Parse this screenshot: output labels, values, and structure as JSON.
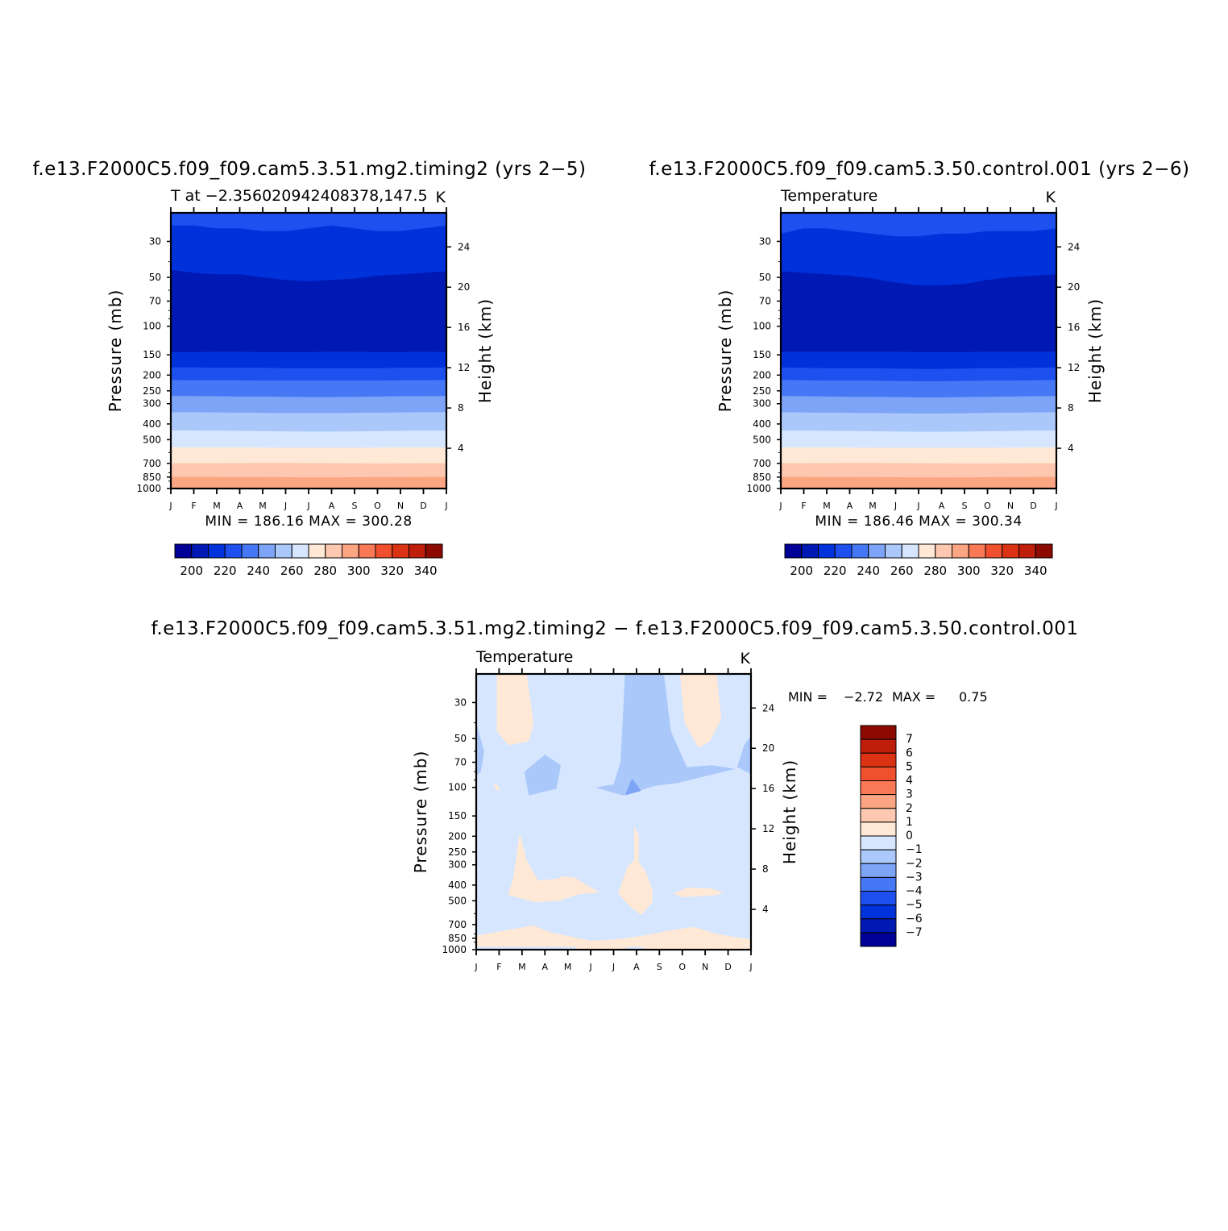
{
  "chart_data": [
    {
      "type": "heatmap",
      "title": "f.e13.F2000C5.f09_f09.cam5.3.51.mg2.timing2 (yrs 2−5)",
      "subtitle": "T at −2.356020942408378,147.5",
      "units": "K",
      "xlabel": "",
      "ylabel": "Pressure (mb)",
      "ylabel_right": "Height (km)",
      "x_ticks": [
        "J",
        "F",
        "M",
        "A",
        "M",
        "J",
        "J",
        "A",
        "S",
        "O",
        "N",
        "D",
        "J"
      ],
      "y_ticks_pressure": [
        "30",
        "50",
        "70",
        "100",
        "150",
        "200",
        "250",
        "300",
        "400",
        "500",
        "700",
        "850",
        "1000"
      ],
      "y_ticks_height": [
        "24",
        "20",
        "16",
        "12",
        "8",
        "4"
      ],
      "min_max_text": "MIN = 186.16 MAX = 300.28",
      "colorbar_labels": [
        "200",
        "220",
        "240",
        "260",
        "280",
        "300",
        "320",
        "340"
      ],
      "levels": [
        190,
        200,
        210,
        220,
        230,
        240,
        250,
        260,
        270,
        280,
        290,
        300,
        310,
        320,
        330,
        340
      ],
      "boundaries_mb": [
        [
          24,
          24,
          25,
          25,
          26,
          26,
          25,
          24,
          25,
          26,
          26,
          25,
          24
        ],
        [
          45,
          47,
          48,
          48,
          50,
          52,
          53,
          52,
          51,
          49,
          48,
          47,
          46
        ],
        [
          145,
          145,
          144,
          144,
          145,
          145,
          145,
          144,
          144,
          145,
          145,
          144,
          145
        ],
        [
          180,
          180,
          181,
          181,
          181,
          182,
          182,
          182,
          182,
          182,
          181,
          181,
          180
        ],
        [
          215,
          216,
          216,
          216,
          217,
          217,
          217,
          217,
          217,
          217,
          216,
          216,
          215
        ],
        [
          270,
          270,
          271,
          272,
          272,
          273,
          274,
          274,
          273,
          272,
          271,
          271,
          270
        ],
        [
          340,
          340,
          341,
          342,
          343,
          344,
          344,
          344,
          343,
          342,
          341,
          340,
          340
        ],
        [
          440,
          440,
          441,
          442,
          444,
          446,
          447,
          447,
          446,
          444,
          442,
          441,
          440
        ],
        [
          560,
          560,
          560,
          560,
          561,
          562,
          562,
          562,
          562,
          561,
          560,
          560,
          560
        ],
        [
          700,
          700,
          700,
          699,
          698,
          698,
          699,
          700,
          701,
          702,
          701,
          700,
          700
        ],
        [
          850,
          850,
          851,
          852,
          853,
          855,
          856,
          856,
          855,
          854,
          852,
          851,
          850
        ]
      ],
      "band_values": [
        210,
        200,
        190,
        200,
        210,
        220,
        230,
        240,
        250,
        260,
        270,
        280
      ]
    },
    {
      "type": "heatmap",
      "title": "f.e13.F2000C5.f09_f09.cam5.3.50.control.001 (yrs 2−6)",
      "subtitle": "Temperature",
      "units": "K",
      "xlabel": "",
      "ylabel": "Pressure (mb)",
      "ylabel_right": "Height (km)",
      "x_ticks": [
        "J",
        "F",
        "M",
        "A",
        "M",
        "J",
        "J",
        "A",
        "S",
        "O",
        "N",
        "D",
        "J"
      ],
      "y_ticks_pressure": [
        "30",
        "50",
        "70",
        "100",
        "150",
        "200",
        "250",
        "300",
        "400",
        "500",
        "700",
        "850",
        "1000"
      ],
      "y_ticks_height": [
        "24",
        "20",
        "16",
        "12",
        "8",
        "4"
      ],
      "min_max_text": "MIN = 186.46 MAX = 300.34",
      "colorbar_labels": [
        "200",
        "220",
        "240",
        "260",
        "280",
        "300",
        "320",
        "340"
      ],
      "levels": [
        190,
        200,
        210,
        220,
        230,
        240,
        250,
        260,
        270,
        280,
        290,
        300,
        310,
        320,
        330,
        340
      ],
      "boundaries_mb": [
        [
          27,
          25,
          25,
          26,
          27,
          28,
          28,
          27,
          27,
          26,
          26,
          26,
          25
        ],
        [
          46,
          47,
          48,
          49,
          51,
          54,
          56,
          56,
          55,
          52,
          50,
          49,
          48
        ],
        [
          144,
          144,
          144,
          144,
          144,
          144,
          145,
          145,
          145,
          144,
          144,
          144,
          144
        ],
        [
          180,
          181,
          182,
          182,
          182,
          183,
          184,
          184,
          183,
          182,
          182,
          181,
          180
        ],
        [
          215,
          216,
          217,
          217,
          217,
          218,
          219,
          219,
          218,
          217,
          217,
          216,
          215
        ],
        [
          270,
          271,
          272,
          273,
          273,
          274,
          275,
          275,
          274,
          273,
          272,
          271,
          270
        ],
        [
          340,
          341,
          342,
          343,
          344,
          345,
          346,
          346,
          345,
          343,
          342,
          341,
          340
        ],
        [
          440,
          441,
          442,
          443,
          445,
          447,
          448,
          448,
          447,
          445,
          443,
          441,
          440
        ],
        [
          560,
          560,
          560,
          561,
          562,
          563,
          563,
          563,
          563,
          562,
          561,
          560,
          560
        ],
        [
          700,
          700,
          699,
          698,
          698,
          699,
          700,
          701,
          702,
          702,
          701,
          700,
          700
        ],
        [
          850,
          851,
          852,
          853,
          854,
          855,
          856,
          857,
          856,
          855,
          853,
          851,
          850
        ]
      ],
      "band_values": [
        210,
        200,
        190,
        200,
        210,
        220,
        230,
        240,
        250,
        260,
        270,
        280
      ]
    },
    {
      "type": "heatmap",
      "title": "f.e13.F2000C5.f09_f09.cam5.3.51.mg2.timing2 − f.e13.F2000C5.f09_f09.cam5.3.50.control.001",
      "subtitle": "Temperature",
      "units": "K",
      "xlabel": "",
      "ylabel": "Pressure (mb)",
      "ylabel_right": "Height (km)",
      "x_ticks": [
        "J",
        "F",
        "M",
        "A",
        "M",
        "J",
        "J",
        "A",
        "S",
        "O",
        "N",
        "D",
        "J"
      ],
      "y_ticks_pressure": [
        "30",
        "50",
        "70",
        "100",
        "150",
        "200",
        "250",
        "300",
        "400",
        "500",
        "700",
        "850",
        "1000"
      ],
      "y_ticks_height": [
        "24",
        "20",
        "16",
        "12",
        "8",
        "4"
      ],
      "min_text": "MIN =",
      "min_value": "−2.72",
      "max_text": "MAX =",
      "max_value": "0.75",
      "colorbar_labels": [
        "7",
        "6",
        "5",
        "4",
        "3",
        "2",
        "1",
        "0",
        "−1",
        "−2",
        "−3",
        "−4",
        "−5",
        "−6",
        "−7"
      ],
      "levels": [
        -7,
        -6,
        -5,
        -4,
        -3,
        -2,
        -1,
        0,
        1,
        2,
        3,
        4,
        5,
        6,
        7
      ],
      "background_value_range": [
        -1,
        0
      ],
      "regions": [
        {
          "name": "warm-feb-top",
          "value_range": [
            0,
            1
          ],
          "points": [
            [
              0.9,
              20
            ],
            [
              2.2,
              20
            ],
            [
              2.5,
              40
            ],
            [
              2.3,
              52
            ],
            [
              1.4,
              55
            ],
            [
              0.9,
              45
            ]
          ]
        },
        {
          "name": "cool-jan-edge",
          "value_range": [
            -2,
            -1
          ],
          "points": [
            [
              0,
              40
            ],
            [
              0.1,
              45
            ],
            [
              0.35,
              60
            ],
            [
              0.2,
              80
            ],
            [
              0,
              85
            ]
          ]
        },
        {
          "name": "cool-march",
          "value_range": [
            -2,
            -1
          ],
          "points": [
            [
              2.1,
              80
            ],
            [
              3,
              63
            ],
            [
              3.7,
              73
            ],
            [
              3.5,
              102
            ],
            [
              2.3,
              112
            ]
          ]
        },
        {
          "name": "warm-feb-dot",
          "value_range": [
            0,
            1
          ],
          "points": [
            [
              0.75,
              96
            ],
            [
              0.95,
              97
            ],
            [
              1.05,
              105
            ],
            [
              0.85,
              103
            ]
          ]
        },
        {
          "name": "cool-aug",
          "value_range": [
            -2,
            -1
          ],
          "points": [
            [
              6.5,
              20
            ],
            [
              8.2,
              20
            ],
            [
              8.5,
              45
            ],
            [
              9.2,
              75
            ],
            [
              10.3,
              73
            ],
            [
              11.3,
              77
            ],
            [
              8.8,
              94
            ],
            [
              7.8,
              98
            ],
            [
              6.4,
              112
            ],
            [
              5.2,
              100
            ],
            [
              6,
              96
            ],
            [
              6.3,
              70
            ]
          ]
        },
        {
          "name": "cooler-aug-spot",
          "value_range": [
            -3,
            -2
          ],
          "points": [
            [
              6.5,
              112
            ],
            [
              6.8,
              88
            ],
            [
              7.2,
              105
            ]
          ]
        },
        {
          "name": "warm-nov-top",
          "value_range": [
            0,
            1
          ],
          "points": [
            [
              8.9,
              20
            ],
            [
              10.5,
              20
            ],
            [
              10.7,
              38
            ],
            [
              10.2,
              52
            ],
            [
              9.7,
              57
            ],
            [
              9.1,
              40
            ]
          ]
        },
        {
          "name": "cool-dec-edge",
          "value_range": [
            -2,
            -1
          ],
          "points": [
            [
              11.4,
              75
            ],
            [
              11.7,
              55
            ],
            [
              12,
              48
            ],
            [
              12,
              83
            ]
          ]
        },
        {
          "name": "warm-mar-mid",
          "value_range": [
            0,
            1
          ],
          "points": [
            [
              1.9,
              190
            ],
            [
              2.2,
              280
            ],
            [
              2.7,
              375
            ],
            [
              3.6,
              365
            ],
            [
              3.7,
              353
            ],
            [
              4.3,
              360
            ],
            [
              5.4,
              445
            ],
            [
              4.5,
              455
            ],
            [
              3.6,
              500
            ],
            [
              2.6,
              510
            ],
            [
              1.4,
              460
            ],
            [
              1.6,
              370
            ]
          ]
        },
        {
          "name": "warm-aug-mid",
          "value_range": [
            0,
            1
          ],
          "points": [
            [
              6.9,
              175
            ],
            [
              7.1,
              195
            ],
            [
              7.1,
              290
            ],
            [
              7.4,
              330
            ],
            [
              7.7,
              430
            ],
            [
              7.7,
              510
            ],
            [
              7.2,
              610
            ],
            [
              6.7,
              540
            ],
            [
              6.2,
              450
            ],
            [
              6.6,
              310
            ],
            [
              6.9,
              280
            ]
          ]
        },
        {
          "name": "warm-oct-mid",
          "value_range": [
            0,
            1
          ],
          "points": [
            [
              8.6,
              450
            ],
            [
              9.2,
              415
            ],
            [
              10.3,
              420
            ],
            [
              10.8,
              450
            ],
            [
              10.3,
              465
            ],
            [
              9,
              475
            ]
          ]
        },
        {
          "name": "warm-bottom",
          "value_range": [
            0,
            1
          ],
          "points": [
            [
              0,
              820
            ],
            [
              1.3,
              760
            ],
            [
              2.5,
              710
            ],
            [
              3.2,
              780
            ],
            [
              5,
              880
            ],
            [
              6.3,
              860
            ],
            [
              7.5,
              810
            ],
            [
              8.5,
              760
            ],
            [
              9.5,
              725
            ],
            [
              10.5,
              800
            ],
            [
              11.6,
              850
            ],
            [
              12,
              860
            ],
            [
              12,
              1000
            ],
            [
              7.7,
              1000
            ],
            [
              6.9,
              955
            ],
            [
              6.1,
              1000
            ],
            [
              4.4,
              1000
            ],
            [
              4.3,
              960
            ],
            [
              0,
              960
            ]
          ]
        }
      ]
    }
  ],
  "palette": {
    "main": [
      "#000096",
      "#0019b4",
      "#0032dc",
      "#1e50f0",
      "#4678f5",
      "#7ea4f8",
      "#aac8fa",
      "#d6e6ff",
      "#ffe8d6",
      "#fdc8af",
      "#fca582",
      "#f97855",
      "#f0502d",
      "#dc3214",
      "#be1e0a",
      "#8c0a00"
    ],
    "diff": [
      "#000096",
      "#0019b4",
      "#0032dc",
      "#1e50f0",
      "#4678f5",
      "#7ea4f8",
      "#aac8fa",
      "#d6e6ff",
      "#ffe8d6",
      "#fdc8af",
      "#fca582",
      "#f97855",
      "#f0502d",
      "#dc3214",
      "#be1e0a",
      "#8c0a00"
    ]
  }
}
